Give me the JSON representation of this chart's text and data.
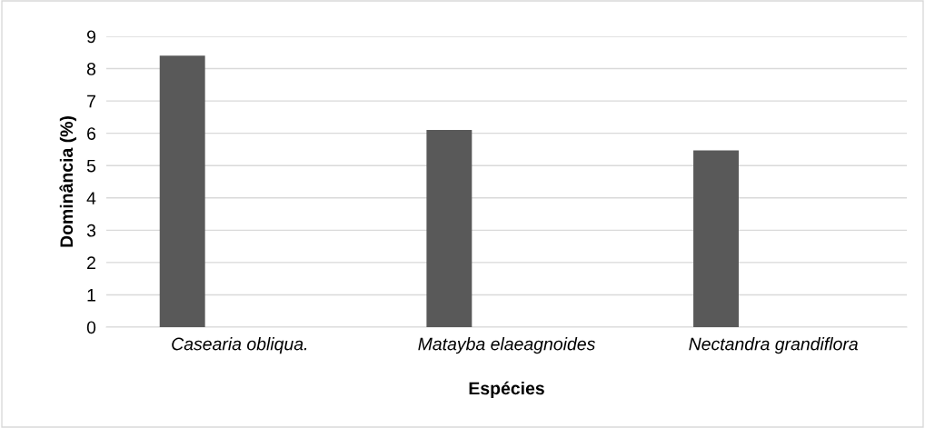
{
  "chart_data": {
    "type": "bar",
    "xlabel": "Espécies",
    "ylabel": "Dominância (%)",
    "categories": [
      "Casearia obliqua.",
      "Matayba elaeagnoides",
      "Nectandra grandiflora"
    ],
    "values": [
      8.4,
      6.1,
      5.47
    ],
    "color": "#595959",
    "ylim": [
      0,
      9
    ],
    "yticks": [
      0,
      1,
      2,
      3,
      4,
      5,
      6,
      7,
      8,
      9
    ],
    "grid": "y"
  }
}
